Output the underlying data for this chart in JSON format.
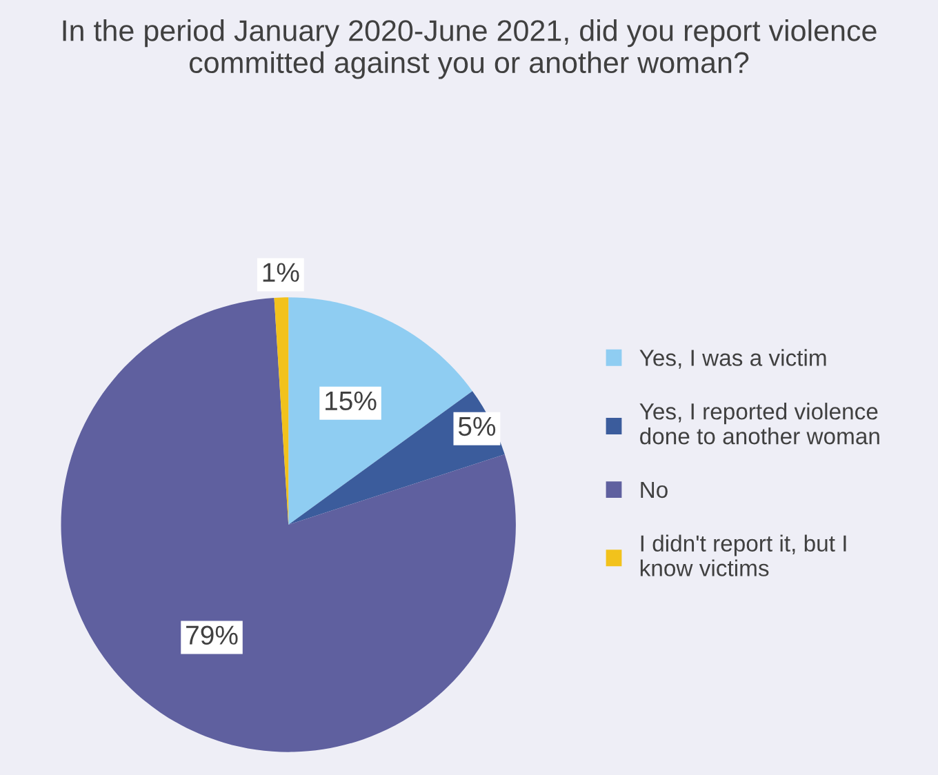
{
  "chart_data": {
    "type": "pie",
    "title": "In the period January 2020-June 2021, did you report violence committed against you or another woman?",
    "categories": [
      "Yes, I was a victim",
      "Yes, I reported violence done to another woman",
      "No",
      "I didn't report it, but I know victims"
    ],
    "values": [
      15,
      5,
      79,
      1
    ],
    "colors": [
      "#8fcdf2",
      "#3b5c9c",
      "#5f609f",
      "#f2c21c"
    ],
    "value_labels": [
      "15%",
      "5%",
      "79%",
      "1%"
    ],
    "legend": "right"
  }
}
